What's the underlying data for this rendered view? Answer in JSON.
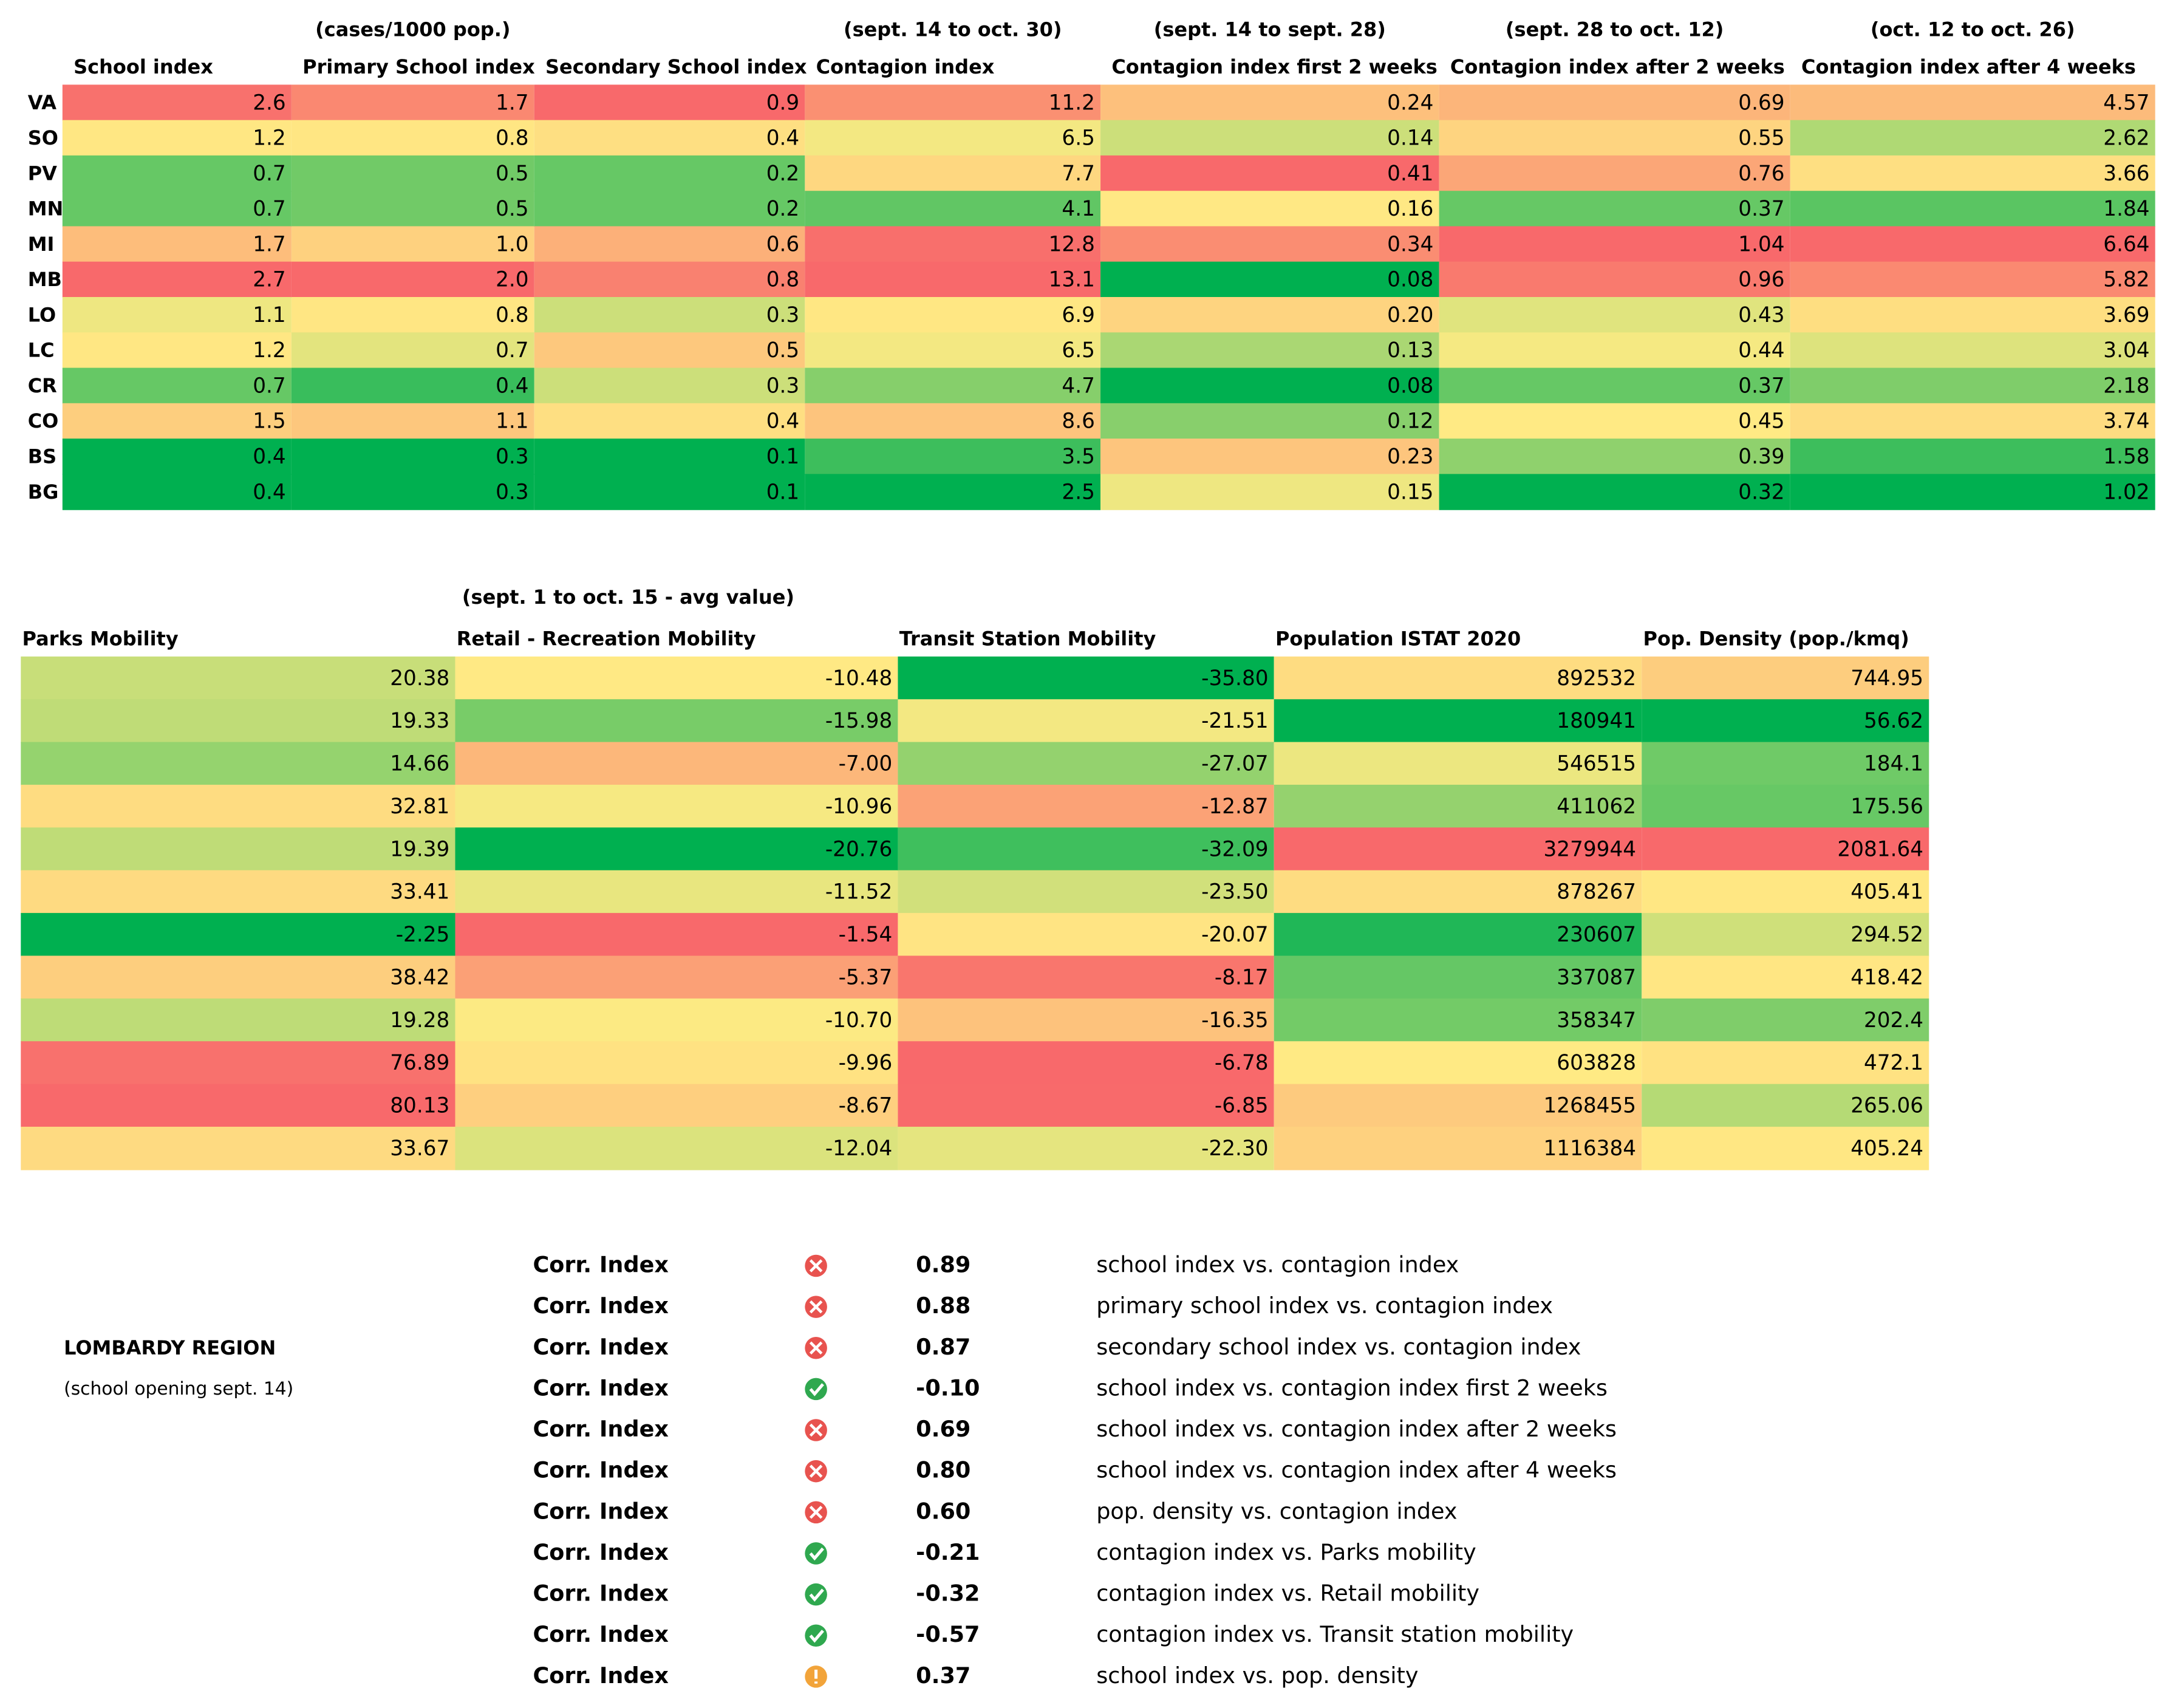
{
  "top_table": {
    "columns": [
      {
        "title": "School index"
      },
      {
        "subtitle": "(cases/1000 pop.)",
        "title": "Primary School index"
      },
      {
        "title": "Secondary School index"
      },
      {
        "subtitle": "(sept. 14 to oct. 30)",
        "title": "Contagion index"
      },
      {
        "subtitle": "(sept. 14 to sept. 28)",
        "title": "Contagion index first 2 weeks"
      },
      {
        "subtitle": "(sept. 28 to oct. 12)",
        "title": "Contagion index after 2 weeks"
      },
      {
        "subtitle": "(oct. 12 to oct. 26)",
        "title": "Contagion index after 4 weeks"
      }
    ],
    "rows": [
      {
        "label": "VA",
        "cells": [
          "2.6",
          "1.7",
          "0.9",
          "11.2",
          "0.24",
          "0.69",
          "4.57"
        ]
      },
      {
        "label": "SO",
        "cells": [
          "1.2",
          "0.8",
          "0.4",
          "6.5",
          "0.14",
          "0.55",
          "2.62"
        ]
      },
      {
        "label": "PV",
        "cells": [
          "0.7",
          "0.5",
          "0.2",
          "7.7",
          "0.41",
          "0.76",
          "3.66"
        ]
      },
      {
        "label": "MN",
        "cells": [
          "0.7",
          "0.5",
          "0.2",
          "4.1",
          "0.16",
          "0.37",
          "1.84"
        ]
      },
      {
        "label": "MI",
        "cells": [
          "1.7",
          "1.0",
          "0.6",
          "12.8",
          "0.34",
          "1.04",
          "6.64"
        ]
      },
      {
        "label": "MB",
        "cells": [
          "2.7",
          "2.0",
          "0.8",
          "13.1",
          "0.08",
          "0.96",
          "5.82"
        ]
      },
      {
        "label": "LO",
        "cells": [
          "1.1",
          "0.8",
          "0.3",
          "6.9",
          "0.20",
          "0.43",
          "3.69"
        ]
      },
      {
        "label": "LC",
        "cells": [
          "1.2",
          "0.7",
          "0.5",
          "6.5",
          "0.13",
          "0.44",
          "3.04"
        ]
      },
      {
        "label": "CR",
        "cells": [
          "0.7",
          "0.4",
          "0.3",
          "4.7",
          "0.08",
          "0.37",
          "2.18"
        ]
      },
      {
        "label": "CO",
        "cells": [
          "1.5",
          "1.1",
          "0.4",
          "8.6",
          "0.12",
          "0.45",
          "3.74"
        ]
      },
      {
        "label": "BS",
        "cells": [
          "0.4",
          "0.3",
          "0.1",
          "3.5",
          "0.23",
          "0.39",
          "1.58"
        ]
      },
      {
        "label": "BG",
        "cells": [
          "0.4",
          "0.3",
          "0.1",
          "2.5",
          "0.15",
          "0.32",
          "1.02"
        ]
      }
    ]
  },
  "bottom_table": {
    "columns": [
      {
        "title": "Parks Mobility"
      },
      {
        "subtitle": "(sept. 1 to  oct. 15 - avg value)",
        "title": "Retail - Recreation Mobility"
      },
      {
        "title": "Transit Station Mobility"
      },
      {
        "title": "Population ISTAT 2020"
      },
      {
        "title": "Pop. Density (pop./kmq)"
      }
    ],
    "rows": [
      [
        "20.38",
        "-10.48",
        "-35.80",
        "892532",
        "744.95"
      ],
      [
        "19.33",
        "-15.98",
        "-21.51",
        "180941",
        "56.62"
      ],
      [
        "14.66",
        "-7.00",
        "-27.07",
        "546515",
        "184.1"
      ],
      [
        "32.81",
        "-10.96",
        "-12.87",
        "411062",
        "175.56"
      ],
      [
        "19.39",
        "-20.76",
        "-32.09",
        "3279944",
        "2081.64"
      ],
      [
        "33.41",
        "-11.52",
        "-23.50",
        "878267",
        "405.41"
      ],
      [
        "-2.25",
        "-1.54",
        "-20.07",
        "230607",
        "294.52"
      ],
      [
        "38.42",
        "-5.37",
        "-8.17",
        "337087",
        "418.42"
      ],
      [
        "19.28",
        "-10.70",
        "-16.35",
        "358347",
        "202.4"
      ],
      [
        "76.89",
        "-9.96",
        "-6.78",
        "603828",
        "472.1"
      ],
      [
        "80.13",
        "-8.67",
        "-6.85",
        "1268455",
        "265.06"
      ],
      [
        "33.67",
        "-12.04",
        "-22.30",
        "1116384",
        "405.24"
      ]
    ]
  },
  "region": {
    "title": "LOMBARDY REGION",
    "note": "(school opening sept. 14)"
  },
  "correlations": [
    {
      "label": "Corr. Index",
      "value": "0.89",
      "description": "school index vs. contagion index"
    },
    {
      "label": "Corr. Index",
      "value": "0.88",
      "description": "primary school index vs. contagion index"
    },
    {
      "label": "Corr. Index",
      "value": "0.87",
      "description": "secondary school index vs. contagion index"
    },
    {
      "label": "Corr. Index",
      "value": "-0.10",
      "description": "school index vs. contagion index first 2 weeks"
    },
    {
      "label": "Corr. Index",
      "value": "0.69",
      "description": "school index vs. contagion index after 2 weeks"
    },
    {
      "label": "Corr. Index",
      "value": "0.80",
      "description": "school index vs. contagion index after 4 weeks"
    },
    {
      "label": "Corr. Index",
      "value": "0.60",
      "description": "pop. density vs. contagion index"
    },
    {
      "label": "Corr. Index",
      "value": "-0.21",
      "description": "contagion index vs. Parks mobility"
    },
    {
      "label": "Corr. Index",
      "value": "-0.32",
      "description": "contagion index vs. Retail mobility"
    },
    {
      "label": "Corr. Index",
      "value": "-0.57",
      "description": "contagion index vs. Transit station mobility"
    },
    {
      "label": "Corr. Index",
      "value": "0.37",
      "description": "school index vs. pop. density"
    }
  ]
}
